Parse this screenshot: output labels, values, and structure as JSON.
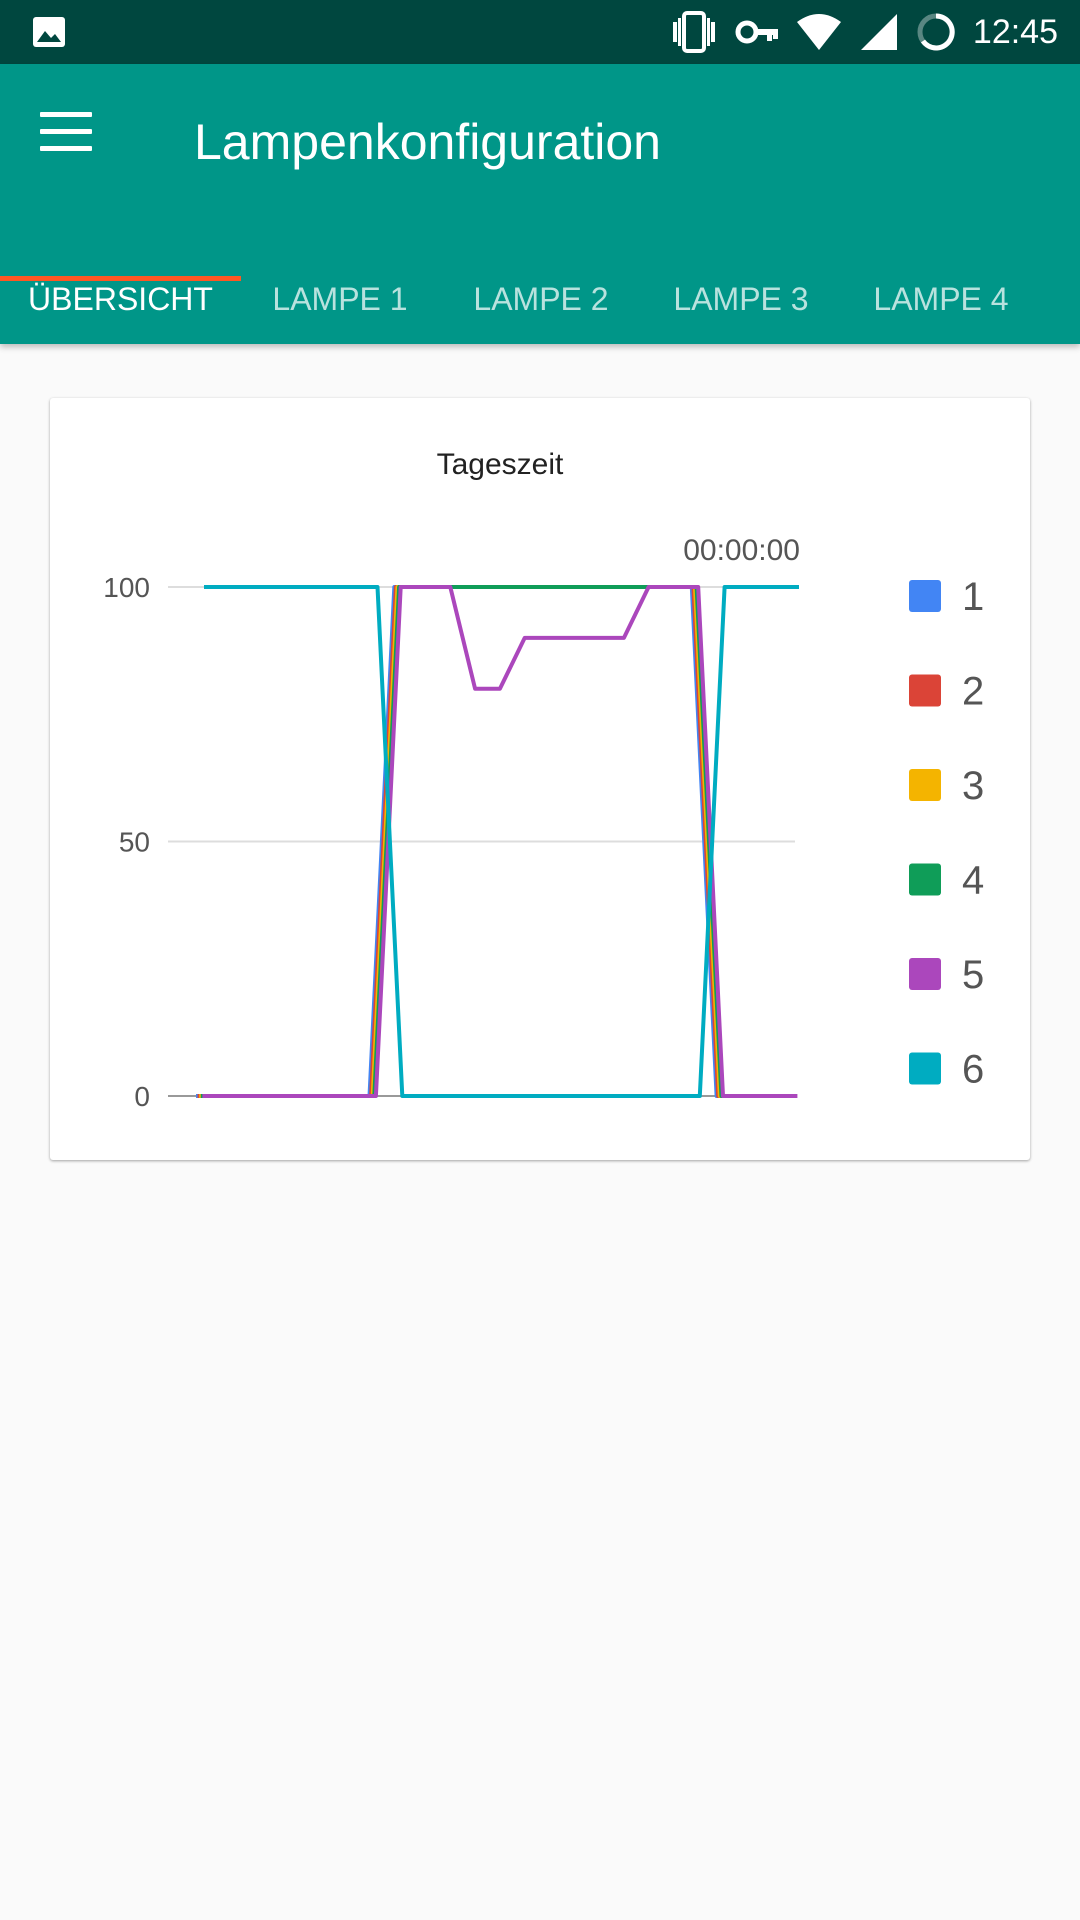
{
  "status_bar": {
    "time": "12:45",
    "left_icons": [
      "image-icon"
    ],
    "right_icons": [
      "vibrate-icon",
      "vpn-key-icon",
      "wifi-icon",
      "cell-signal-icon",
      "battery-icon"
    ]
  },
  "app_bar": {
    "title": "Lampenkonfiguration",
    "background": "#009688",
    "menu_icon": "menu-icon"
  },
  "tabs": [
    {
      "label": "ÜBERSICHT",
      "active": true
    },
    {
      "label": "LAMPE 1",
      "active": false
    },
    {
      "label": "LAMPE 2",
      "active": false
    },
    {
      "label": "LAMPE 3",
      "active": false
    },
    {
      "label": "LAMPE 4",
      "active": false
    }
  ],
  "tab_indicator_color": "#ff5722",
  "chart_data": {
    "type": "line",
    "title": "Tageszeit",
    "annotation": "00:00:00",
    "xlabel": "",
    "ylabel": "",
    "ylim": [
      0,
      100
    ],
    "yticks": [
      0,
      50,
      100
    ],
    "grid": true,
    "legend_position": "right",
    "x": [
      0,
      1,
      2,
      3,
      4,
      5,
      6,
      7,
      8,
      9,
      10,
      11,
      12,
      13,
      14,
      15,
      16,
      17,
      18,
      19,
      20,
      21,
      22,
      23,
      24
    ],
    "series": [
      {
        "name": "1",
        "color": "#4285f4",
        "values": [
          0,
          0,
          0,
          0,
          0,
          0,
          0,
          0,
          100,
          100,
          100,
          100,
          100,
          100,
          100,
          100,
          100,
          100,
          100,
          100,
          100,
          0,
          0,
          0,
          0
        ]
      },
      {
        "name": "2",
        "color": "#db4437",
        "values": [
          0,
          0,
          0,
          0,
          0,
          0,
          0,
          0,
          100,
          100,
          100,
          100,
          100,
          100,
          100,
          100,
          100,
          100,
          100,
          100,
          100,
          0,
          0,
          0,
          0
        ]
      },
      {
        "name": "3",
        "color": "#f4b400",
        "values": [
          0,
          0,
          0,
          0,
          0,
          0,
          0,
          0,
          100,
          100,
          100,
          100,
          100,
          100,
          100,
          100,
          100,
          100,
          100,
          100,
          100,
          0,
          0,
          0,
          0
        ]
      },
      {
        "name": "4",
        "color": "#0f9d58",
        "values": [
          0,
          0,
          0,
          0,
          0,
          0,
          0,
          0,
          100,
          100,
          100,
          100,
          100,
          100,
          100,
          100,
          100,
          100,
          100,
          100,
          100,
          0,
          0,
          0,
          0
        ]
      },
      {
        "name": "5",
        "color": "#ab47bc",
        "values": [
          0,
          0,
          0,
          0,
          0,
          0,
          0,
          0,
          100,
          100,
          100,
          80,
          80,
          90,
          90,
          90,
          90,
          90,
          100,
          100,
          100,
          0,
          0,
          0,
          0
        ]
      },
      {
        "name": "6",
        "color": "#00acc1",
        "values": [
          100,
          100,
          100,
          100,
          100,
          100,
          100,
          100,
          0,
          0,
          0,
          0,
          0,
          0,
          0,
          0,
          0,
          0,
          0,
          0,
          0,
          100,
          100,
          100,
          100
        ]
      }
    ]
  }
}
